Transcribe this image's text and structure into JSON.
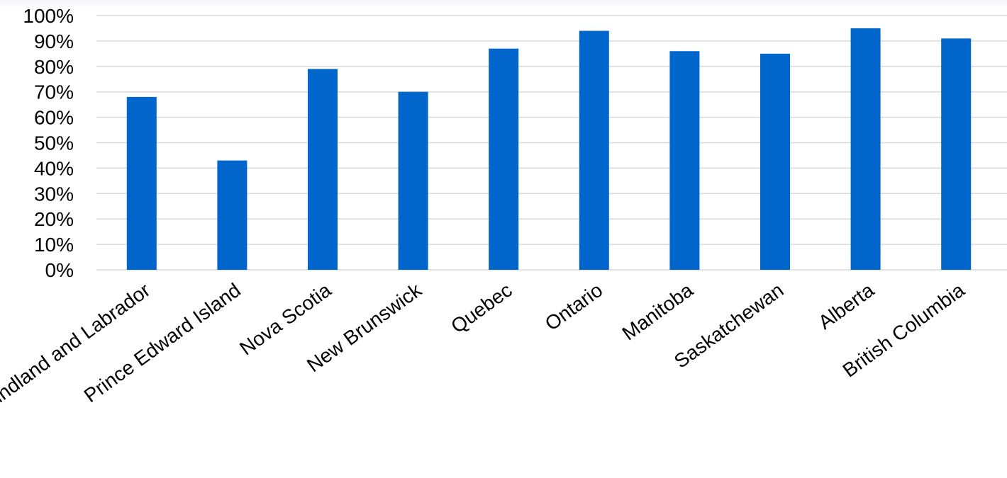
{
  "chart_data": {
    "type": "bar",
    "title": "",
    "xlabel": "",
    "ylabel": "",
    "categories": [
      "Newfoundland and Labrador",
      "Prince Edward Island",
      "Nova Scotia",
      "New Brunswick",
      "Quebec",
      "Ontario",
      "Manitoba",
      "Saskatchewan",
      "Alberta",
      "British Columbia"
    ],
    "values": [
      68,
      43,
      79,
      70,
      87,
      94,
      86,
      85,
      95,
      91
    ],
    "ylim": [
      0,
      100
    ],
    "y_ticks": [
      "0%",
      "10%",
      "20%",
      "30%",
      "40%",
      "50%",
      "60%",
      "70%",
      "80%",
      "90%",
      "100%"
    ],
    "y_tick_values": [
      0,
      10,
      20,
      30,
      40,
      50,
      60,
      70,
      80,
      90,
      100
    ],
    "grid": true,
    "legend": "none",
    "bar_color": "#0066cc",
    "grid_color": "#d9d9d9"
  }
}
